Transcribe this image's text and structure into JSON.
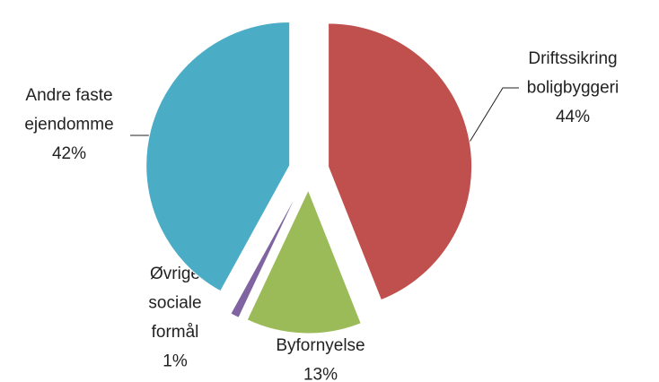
{
  "chart_data": {
    "type": "pie",
    "categories": [
      [
        "Driftssikring",
        "boligbyggeri"
      ],
      [
        "Byfornyelse"
      ],
      [
        "Øvrige",
        "sociale",
        "formål"
      ],
      [
        "Andre faste",
        "ejendomme"
      ]
    ],
    "values": [
      44,
      13,
      1,
      42
    ],
    "value_labels": [
      "44%",
      "13%",
      "1%",
      "42%"
    ],
    "colors": [
      "#c0504d",
      "#9bbb59",
      "#8064a2",
      "#4bacc6"
    ]
  }
}
